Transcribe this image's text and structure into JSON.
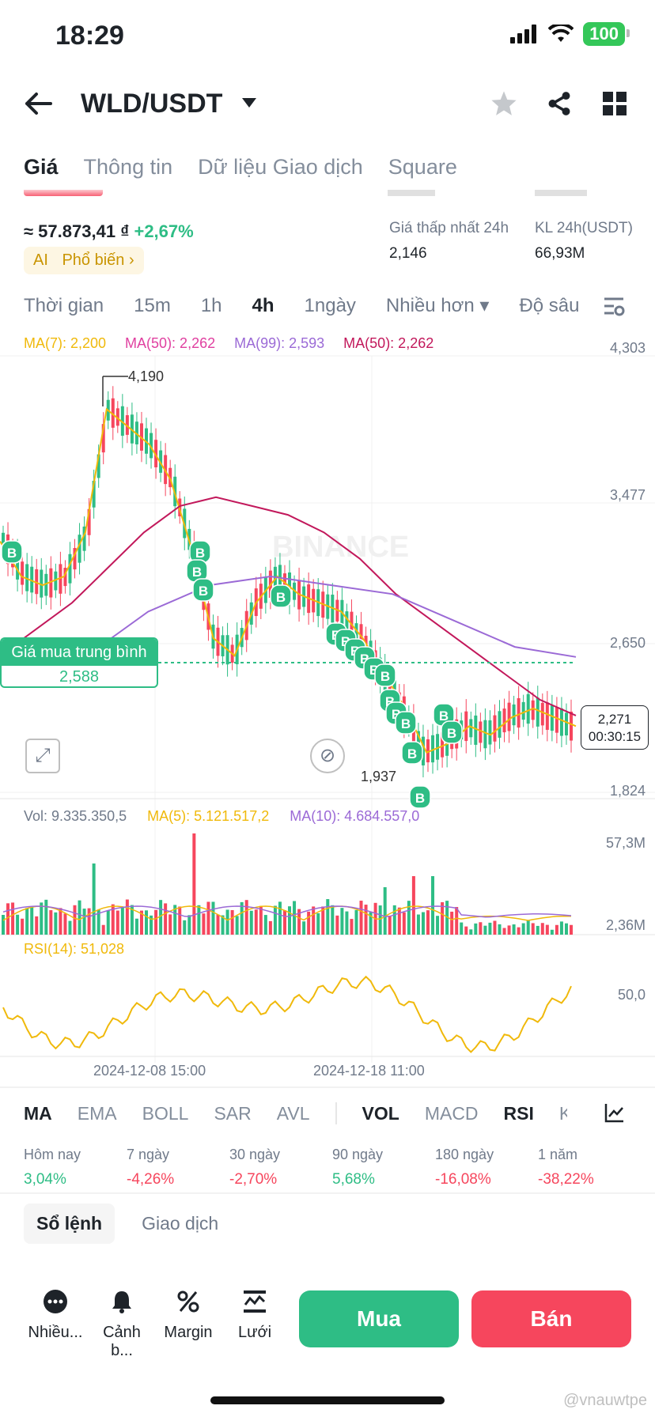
{
  "status": {
    "time": "18:29",
    "battery": "100"
  },
  "header": {
    "pair": "WLD/USDT"
  },
  "tabs": [
    {
      "label": "Giá"
    },
    {
      "label": "Thông tin"
    },
    {
      "label": "Dữ liệu Giao dịch"
    },
    {
      "label": "Square"
    }
  ],
  "price": {
    "vnd": "≈ 57.873,41 ₫",
    "change": "+2,67%",
    "ai_label": "AI",
    "popular": "Phổ biến"
  },
  "stats": {
    "low_label": "Giá thấp nhất 24h",
    "low_value": "2,146",
    "vol_label": "KL 24h(USDT)",
    "vol_value": "66,93M"
  },
  "periods": [
    "Thời gian",
    "15m",
    "1h",
    "4h",
    "1ngày",
    "Nhiều hơn",
    "Độ sâu"
  ],
  "ma_legend": [
    {
      "text": "MA(7): 2,200",
      "color": "#f0b90b"
    },
    {
      "text": "MA(50): 2,262",
      "color": "#e040a0"
    },
    {
      "text": "MA(99): 2,593",
      "color": "#9b6ad6"
    },
    {
      "text": "MA(50): 2,262",
      "color": "#c2185b"
    }
  ],
  "axis": {
    "p1": "4,303",
    "p2": "3,477",
    "p3": "2,650",
    "p4": "1,824",
    "v1": "57,3M",
    "v2": "2,36M",
    "r1": "50,0"
  },
  "chart_labels": {
    "high": "4,190",
    "low": "1,937",
    "avg_title": "Giá mua trung bình",
    "avg_value": "2,588",
    "current": "2,271",
    "countdown": "00:30:15",
    "watermark": "BINANCE"
  },
  "vol_legend": {
    "vol": "Vol: 9.335.350,5",
    "ma5": "MA(5): 5.121.517,2",
    "ma10": "MA(10): 4.684.557,0"
  },
  "rsi_legend": "RSI(14): 51,028",
  "dates": {
    "d1": "2024-12-08 15:00",
    "d2": "2024-12-18 11:00"
  },
  "indicators": [
    "MA",
    "EMA",
    "BOLL",
    "SAR",
    "AVL",
    "VOL",
    "MACD",
    "RSI",
    "K"
  ],
  "performance": [
    {
      "label": "Hôm nay",
      "value": "3,04%"
    },
    {
      "label": "7 ngày",
      "value": "-4,26%"
    },
    {
      "label": "30 ngày",
      "value": "-2,70%"
    },
    {
      "label": "90 ngày",
      "value": "5,68%"
    },
    {
      "label": "180 ngày",
      "value": "-16,08%"
    },
    {
      "label": "1 năm",
      "value": "-38,22%"
    }
  ],
  "book_tabs": {
    "orderbook": "Sổ lệnh",
    "trades": "Giao dịch"
  },
  "bottom": {
    "more": "Nhiều...",
    "alert": "Cảnh b...",
    "margin": "Margin",
    "grid": "Lưới",
    "buy": "Mua",
    "sell": "Bán"
  },
  "watermark": "@vnauwtpe",
  "chart_data": {
    "type": "line",
    "title": "",
    "price_axis": [
      4.303,
      3.477,
      2.65,
      1.824
    ],
    "series": [
      {
        "name": "MA(7)",
        "values": [
          3.25,
          3.05,
          3.0,
          3.05,
          3.3,
          4.0,
          3.9,
          3.8,
          3.6,
          3.2,
          2.7,
          2.6,
          2.9,
          3.05,
          2.95,
          2.9,
          2.85,
          2.7,
          2.5,
          2.3,
          2.05,
          2.1,
          2.2,
          2.15,
          2.25,
          2.3,
          2.25,
          2.2
        ]
      },
      {
        "name": "MA(50)",
        "values": [
          2.6,
          2.75,
          2.9,
          3.1,
          3.3,
          3.45,
          3.5,
          3.45,
          3.4,
          3.3,
          3.15,
          2.95,
          2.8,
          2.65,
          2.5,
          2.35,
          2.26
        ]
      },
      {
        "name": "MA(99)",
        "values": [
          2.6,
          2.85,
          3.0,
          3.05,
          3.0,
          2.95,
          2.8,
          2.65,
          2.593
        ]
      }
    ],
    "high": 4.19,
    "low": 1.937,
    "current": 2.271,
    "avg_buy": 2.588,
    "volume": {
      "max": "57,3M",
      "min": "2,36M"
    },
    "rsi": {
      "value": 51.028,
      "ref": 50.0
    }
  }
}
